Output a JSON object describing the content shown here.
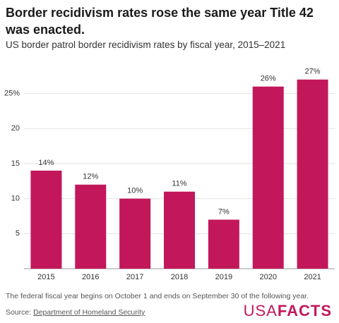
{
  "chart_data": {
    "type": "bar",
    "title": "Border recidivism rates rose the same year Title 42 was enacted.",
    "subtitle": "US border patrol border recidivism rates by fiscal year, 2015–2021",
    "categories": [
      "2015",
      "2016",
      "2017",
      "2018",
      "2019",
      "2020",
      "2021"
    ],
    "values": [
      14,
      12,
      10,
      11,
      7,
      26,
      27
    ],
    "value_labels": [
      "14%",
      "12%",
      "10%",
      "11%",
      "7%",
      "26%",
      "27%"
    ],
    "color": "#c2185b",
    "ylim": [
      0,
      30
    ],
    "yticks": [
      5,
      10,
      15,
      20,
      {
        "value": 25,
        "label": "25%"
      }
    ],
    "grid": true,
    "note": "The federal fiscal year begins on October 1 and ends on September 30 of the following year.",
    "source_label": "Source:",
    "source": "Department of Homeland Security",
    "logo": [
      "USA",
      "FACTS"
    ]
  }
}
